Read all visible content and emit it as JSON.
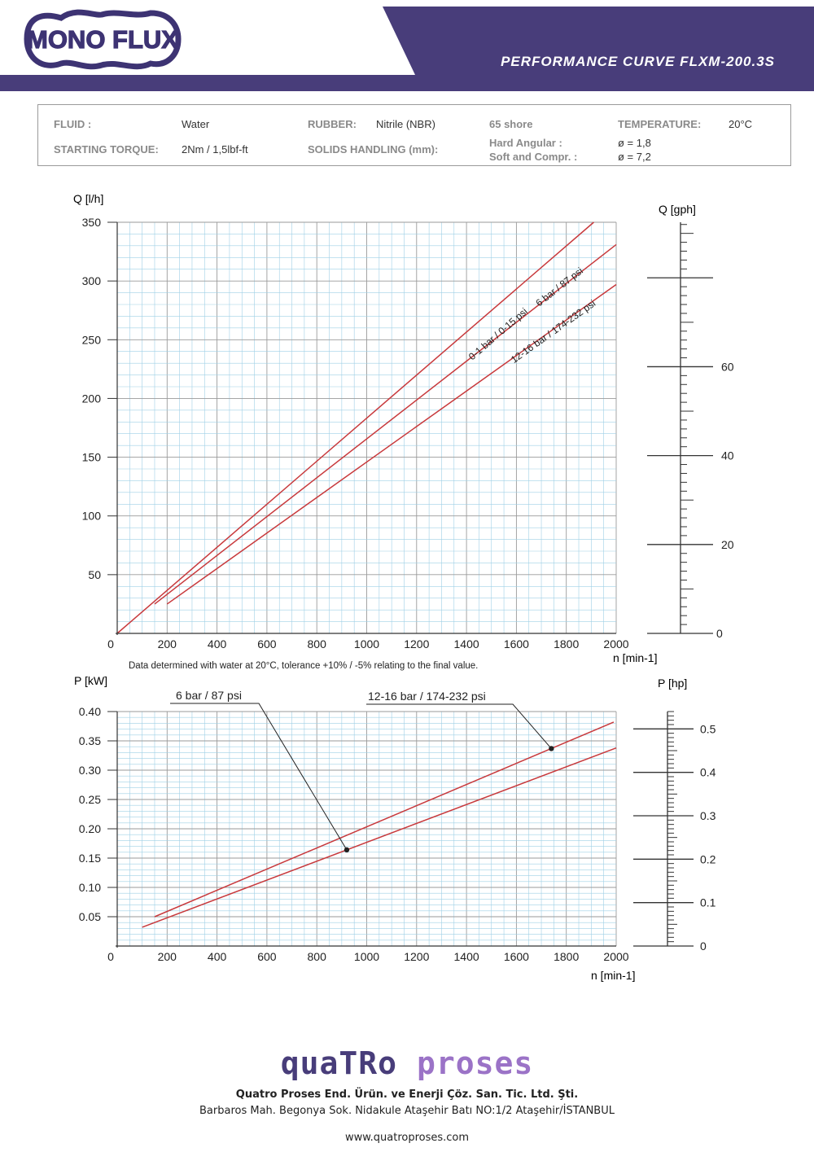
{
  "header": {
    "brand": "MONO FLUX",
    "title": "PERFORMANCE CURVE FLXM-200.3S",
    "colors": {
      "bar": "#483d7a",
      "logo_fill": "#3d3373"
    }
  },
  "specs": {
    "fluid_label": "FLUID :",
    "fluid_value": "Water",
    "rubber_label": "RUBBER:",
    "rubber_value": "Nitrile (NBR)",
    "shore": "65 shore",
    "temperature_label": "TEMPERATURE:",
    "temperature_value": "20°C",
    "torque_label": "STARTING TORQUE:",
    "torque_value": "2Nm / 1,5lbf-ft",
    "solids_label": "SOLIDS HANDLING (mm):",
    "hard_angular_label": "Hard Angular :",
    "hard_angular_value": "ø = 1,8",
    "soft_compr_label": "Soft and Compr. :",
    "soft_compr_value": "ø = 7,2"
  },
  "note": "Data determined with water at 20°C, tolerance +10% / -5% relating to the final value.",
  "chart_data": [
    {
      "type": "line",
      "ylabel": "Q [l/h]",
      "xlabel": "n [min-1]",
      "xlim": [
        0,
        2000
      ],
      "ylim": [
        0,
        350
      ],
      "xticks": [
        "0",
        "200",
        "400",
        "600",
        "800",
        "1000",
        "1200",
        "1400",
        "1600",
        "1800",
        "2000"
      ],
      "yticks": [
        "50",
        "100",
        "150",
        "200",
        "250",
        "300",
        "350"
      ],
      "grid": true,
      "series": [
        {
          "name": "0-1 bar / 0-15 psi",
          "x": [
            0,
            1910
          ],
          "y": [
            0,
            350
          ]
        },
        {
          "name": "6 bar / 87 psi",
          "x": [
            150,
            2000
          ],
          "y": [
            25,
            331
          ]
        },
        {
          "name": "12-16 bar / 174-232 psi",
          "x": [
            200,
            2000
          ],
          "y": [
            25,
            297
          ]
        }
      ],
      "secondary_axis": {
        "label": "Q [gph]",
        "ticks": [
          "0",
          "20",
          "40",
          "60"
        ],
        "max": 92.5
      }
    },
    {
      "type": "line",
      "ylabel": "P [kW]",
      "xlabel": "n [min-1]",
      "xlim": [
        0,
        2000
      ],
      "ylim": [
        0,
        0.4
      ],
      "xticks": [
        "0",
        "200",
        "400",
        "600",
        "800",
        "1000",
        "1200",
        "1400",
        "1600",
        "1800",
        "2000"
      ],
      "yticks": [
        "0.05",
        "0.10",
        "0.15",
        "0.20",
        "0.25",
        "0.30",
        "0.35",
        "0.40"
      ],
      "grid": true,
      "series": [
        {
          "name": "12-16 bar / 174-232 psi",
          "x": [
            150,
            1990
          ],
          "y": [
            0.05,
            0.382
          ]
        },
        {
          "name": "6 bar / 87 psi",
          "x": [
            100,
            2000
          ],
          "y": [
            0.032,
            0.338
          ]
        }
      ],
      "secondary_axis": {
        "label": "P [hp]",
        "ticks": [
          "0",
          "0.1",
          "0.2",
          "0.3",
          "0.4",
          "0.5"
        ],
        "max": 0.54
      }
    }
  ],
  "footer": {
    "brand_a": "quaTRo",
    "brand_b": "proses",
    "company": "Quatro Proses End. Ürün. ve Enerji Çöz. San. Tic. Ltd. Şti.",
    "address": "Barbaros Mah. Begonya Sok. Nidakule Ataşehir Batı NO:1/2 Ataşehir/İSTANBUL",
    "website": "www.quatroproses.com"
  },
  "colors": {
    "curve": "#c8393c",
    "grid": "#9fd0e6",
    "grid_major": "#9a9a9a"
  }
}
